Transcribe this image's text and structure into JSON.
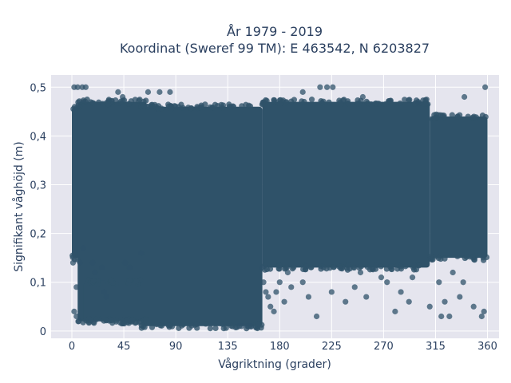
{
  "chart_data": {
    "type": "scatter",
    "title_lines": [
      "År 1979 - 2019",
      "Koordinat (Sweref 99 TM): E 463542, N 6203827"
    ],
    "xlabel": "Vågriktning (grader)",
    "ylabel": "Signifikant våghöjd (m)",
    "xlim": [
      -18,
      370
    ],
    "ylim": [
      -0.015,
      0.525
    ],
    "xticks": [
      0,
      45,
      90,
      135,
      180,
      225,
      270,
      315,
      360
    ],
    "xtick_labels": [
      "0",
      "45",
      "90",
      "135",
      "180",
      "225",
      "270",
      "315",
      "360"
    ],
    "yticks": [
      0,
      0.1,
      0.2,
      0.3,
      0.4,
      0.5
    ],
    "ytick_labels": [
      "0",
      "0,1",
      "0,2",
      "0,3",
      "0,4",
      "0,5"
    ],
    "grid": true,
    "marker_color": "#2f5269",
    "background_color": "#e5e5ee",
    "dense_regions": [
      {
        "x": [
          0,
          10
        ],
        "y": [
          0.15,
          0.46
        ]
      },
      {
        "x": [
          5,
          65
        ],
        "y": [
          0.02,
          0.47
        ]
      },
      {
        "x": [
          60,
          165
        ],
        "y": [
          0.01,
          0.46
        ]
      },
      {
        "x": [
          10,
          60
        ],
        "y": [
          0.02,
          0.1
        ]
      },
      {
        "x": [
          165,
          310
        ],
        "y": [
          0.13,
          0.47
        ]
      },
      {
        "x": [
          310,
          360
        ],
        "y": [
          0.15,
          0.44
        ]
      }
    ],
    "points": [
      [
        2,
        0.5
      ],
      [
        5,
        0.5
      ],
      [
        9,
        0.5
      ],
      [
        12,
        0.5
      ],
      [
        40,
        0.49
      ],
      [
        44,
        0.48
      ],
      [
        66,
        0.49
      ],
      [
        76,
        0.49
      ],
      [
        85,
        0.49
      ],
      [
        200,
        0.49
      ],
      [
        215,
        0.5
      ],
      [
        221,
        0.5
      ],
      [
        226,
        0.5
      ],
      [
        358,
        0.5
      ],
      [
        140,
        0.46
      ],
      [
        252,
        0.48
      ],
      [
        300,
        0.47
      ],
      [
        340,
        0.48
      ],
      [
        1,
        0.14
      ],
      [
        2,
        0.04
      ],
      [
        4,
        0.03
      ],
      [
        4,
        0.09
      ],
      [
        6,
        0.02
      ],
      [
        7,
        0.14
      ],
      [
        10,
        0.17
      ],
      [
        18,
        0.14
      ],
      [
        20,
        0.12
      ],
      [
        26,
        0.13
      ],
      [
        28,
        0.08
      ],
      [
        30,
        0.07
      ],
      [
        46,
        0.14
      ],
      [
        50,
        0.13
      ],
      [
        60,
        0.16
      ],
      [
        165,
        0.13
      ],
      [
        166,
        0.1
      ],
      [
        168,
        0.08
      ],
      [
        170,
        0.07
      ],
      [
        172,
        0.05
      ],
      [
        175,
        0.04
      ],
      [
        177,
        0.08
      ],
      [
        180,
        0.1
      ],
      [
        184,
        0.06
      ],
      [
        187,
        0.12
      ],
      [
        190,
        0.09
      ],
      [
        200,
        0.1
      ],
      [
        205,
        0.07
      ],
      [
        212,
        0.03
      ],
      [
        225,
        0.08
      ],
      [
        237,
        0.06
      ],
      [
        245,
        0.09
      ],
      [
        250,
        0.12
      ],
      [
        255,
        0.07
      ],
      [
        268,
        0.11
      ],
      [
        273,
        0.1
      ],
      [
        280,
        0.04
      ],
      [
        285,
        0.08
      ],
      [
        292,
        0.06
      ],
      [
        295,
        0.11
      ],
      [
        310,
        0.05
      ],
      [
        318,
        0.1
      ],
      [
        320,
        0.03
      ],
      [
        323,
        0.06
      ],
      [
        327,
        0.03
      ],
      [
        330,
        0.12
      ],
      [
        336,
        0.07
      ],
      [
        339,
        0.1
      ],
      [
        348,
        0.05
      ],
      [
        355,
        0.03
      ],
      [
        357,
        0.04
      ],
      [
        147,
        0.01
      ],
      [
        152,
        0.01
      ],
      [
        155,
        0.01
      ],
      [
        145,
        0.01
      ]
    ]
  }
}
